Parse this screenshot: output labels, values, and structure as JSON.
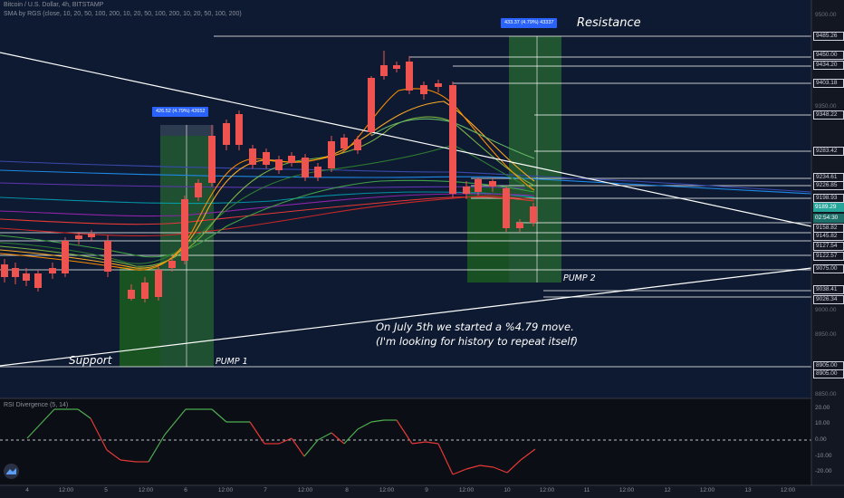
{
  "header": {
    "title": "Bitcoin / U.S. Dollar, 4h, BITSTAMP",
    "indicator": "SMA by RGS (close, 10, 20, 50, 100, 200, 10, 20, 50, 100, 200, 10, 20, 50, 100, 200)"
  },
  "rsi": {
    "title": "RSI Divergence (5, 14)",
    "axis": [
      "20.00",
      "10.00",
      "0.00",
      "-10.00",
      "-20.00"
    ]
  },
  "annotations": {
    "resistance": "Resistance",
    "support": "Support",
    "pump1": "PUMP 1",
    "pump2": "PUMP 2",
    "note_line1": "On July 5th we started a %4.79 move.",
    "note_line2": "(I'm looking for history to repeat itself)",
    "tag1": "426.52 (4.79%) 42652",
    "tag2": "433.37 (4.79%) 43337"
  },
  "price_axis": {
    "levels": [
      {
        "text": "9500.00",
        "style": "dim"
      },
      {
        "text": "9485.26",
        "style": "boxed"
      },
      {
        "text": "9450.00",
        "style": "boxed"
      },
      {
        "text": "9434.20",
        "style": "boxed"
      },
      {
        "text": "9403.18",
        "style": "boxed"
      },
      {
        "text": "9350.00",
        "style": "dim"
      },
      {
        "text": "9348.22",
        "style": "boxed"
      },
      {
        "text": "9283.42",
        "style": "boxed"
      },
      {
        "text": "9234.61",
        "style": "boxed"
      },
      {
        "text": "9226.85",
        "style": "boxed"
      },
      {
        "text": "9198.93",
        "style": "boxed"
      },
      {
        "text": "9189.29",
        "style": "cur"
      },
      {
        "text": "02:54:30",
        "style": "tmr"
      },
      {
        "text": "9158.82",
        "style": "boxed"
      },
      {
        "text": "9145.82",
        "style": "boxed"
      },
      {
        "text": "9127.54",
        "style": "boxed"
      },
      {
        "text": "9122.57",
        "style": "boxed"
      },
      {
        "text": "9075.00",
        "style": "boxed"
      },
      {
        "text": "9038.41",
        "style": "boxed"
      },
      {
        "text": "9026.34",
        "style": "boxed"
      },
      {
        "text": "9000.00",
        "style": "dim"
      },
      {
        "text": "8950.00",
        "style": "dim"
      },
      {
        "text": "8905.00",
        "style": "boxed"
      },
      {
        "text": "8905.00",
        "style": "boxed"
      },
      {
        "text": "8850.00",
        "style": "dim"
      }
    ]
  },
  "time_axis": [
    "4",
    "12:00",
    "5",
    "12:00",
    "6",
    "12:00",
    "7",
    "12:00",
    "8",
    "12:00",
    "9",
    "12:00",
    "10",
    "12:00",
    "11",
    "12:00",
    "12",
    "12:00",
    "13",
    "12:00"
  ],
  "colors": {
    "background": "#131722",
    "up": "#26a69a",
    "down": "#ef5350",
    "rsi_up": "#4caf50",
    "rsi_down": "#e53935",
    "pump_zone": "#1b5e20"
  }
}
